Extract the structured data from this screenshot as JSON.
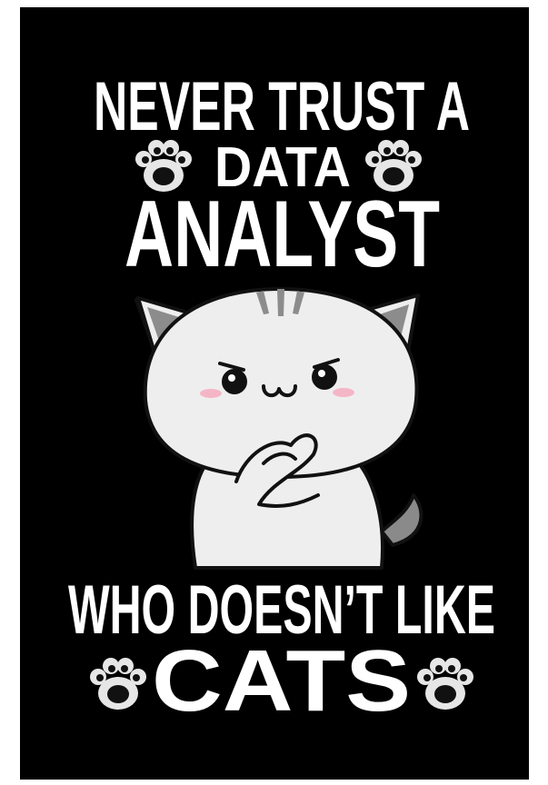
{
  "poster": {
    "line1": "NEVER TRUST A",
    "line2": "DATA",
    "line3": "ANALYST",
    "line4": "WHO DOESN’T LIKE",
    "line5": "CATS"
  }
}
